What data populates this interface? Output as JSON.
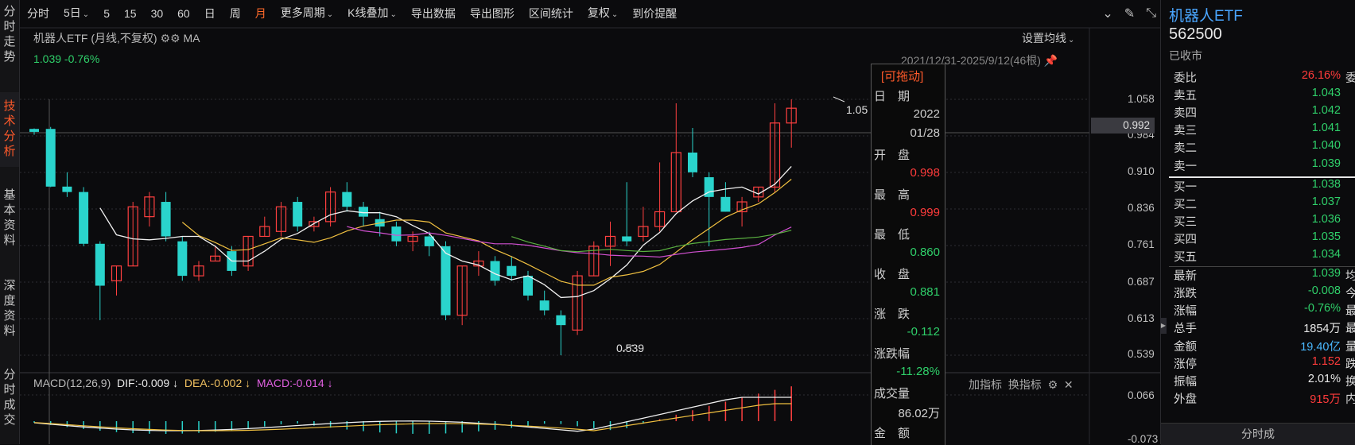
{
  "left_tabs": [
    {
      "label": "分时走势",
      "active": false
    },
    {
      "label": "技术分析",
      "active": true
    },
    {
      "label": "基本资料",
      "active": false
    },
    {
      "label": "深度资料",
      "active": false
    },
    {
      "label": "分时成交",
      "active": false
    }
  ],
  "toolbar": {
    "items": [
      {
        "label": "分时",
        "caret": false,
        "active": false
      },
      {
        "label": "5日",
        "caret": true,
        "active": false
      },
      {
        "label": "5",
        "caret": false,
        "active": false
      },
      {
        "label": "15",
        "caret": false,
        "active": false
      },
      {
        "label": "30",
        "caret": false,
        "active": false
      },
      {
        "label": "60",
        "caret": false,
        "active": false
      },
      {
        "label": "日",
        "caret": false,
        "active": false
      },
      {
        "label": "周",
        "caret": false,
        "active": false
      },
      {
        "label": "月",
        "caret": false,
        "active": true
      },
      {
        "label": "更多周期",
        "caret": true,
        "active": false
      },
      {
        "label": "K线叠加",
        "caret": true,
        "active": false
      },
      {
        "label": "导出数据",
        "caret": false,
        "active": false
      },
      {
        "label": "导出图形",
        "caret": false,
        "active": false
      },
      {
        "label": "区间统计",
        "caret": false,
        "active": false
      },
      {
        "label": "复权",
        "caret": true,
        "active": false
      },
      {
        "label": "到价提醒",
        "caret": false,
        "active": false
      }
    ]
  },
  "chart": {
    "title": "机器人ETF (月线,不复权)",
    "ma_label": "MA",
    "price_line": "1.039 -0.76%",
    "range_label": "2021/12/31-2025/9/12(46根)",
    "ma_setting": "设置均线",
    "axis_labels": [
      "1.058",
      "0.984",
      "0.910",
      "0.836",
      "0.761",
      "0.687",
      "0.613",
      "0.539"
    ],
    "crosshair_value": "0.992",
    "high_mark": "1.05",
    "low_mark": "0.539",
    "macd_axis": [
      "0.066",
      "-0.073"
    ]
  },
  "popup": {
    "drag": "[可拖动]",
    "date_label": "日　期",
    "year": "2022",
    "date": "01/28",
    "open_label": "开　盘",
    "open": "0.998",
    "high_label": "最　高",
    "high": "0.999",
    "low_label": "最　低",
    "low": "0.860",
    "close_label": "收　盘",
    "close": "0.881",
    "chg_label": "涨　跌",
    "chg": "-0.112",
    "pct_label": "涨跌幅",
    "pct": "-11.28%",
    "vol_label": "成交量",
    "vol": "86.02万",
    "amt_label": "金　额"
  },
  "macd": {
    "name": "MACD(12,26,9)",
    "dif": "DIF:-0.009",
    "dea": "DEA:-0.002",
    "mac": "MACD:-0.014",
    "arrow": "↓",
    "add_indicator": "加指标",
    "switch_indicator": "换指标"
  },
  "quote": {
    "name": "机器人ETF",
    "code": "562500",
    "status": "已收市",
    "ratio_label": "委比",
    "ratio": "26.16%",
    "ratio_extra": "委",
    "asks": [
      {
        "label": "卖五",
        "value": "1.043"
      },
      {
        "label": "卖四",
        "value": "1.042"
      },
      {
        "label": "卖三",
        "value": "1.041"
      },
      {
        "label": "卖二",
        "value": "1.040"
      },
      {
        "label": "卖一",
        "value": "1.039"
      }
    ],
    "bids": [
      {
        "label": "买一",
        "value": "1.038"
      },
      {
        "label": "买二",
        "value": "1.037"
      },
      {
        "label": "买三",
        "value": "1.036"
      },
      {
        "label": "买四",
        "value": "1.035"
      },
      {
        "label": "买五",
        "value": "1.034"
      }
    ],
    "stats": [
      {
        "label": "最新",
        "value": "1.039",
        "color": "#2fd06a",
        "extra": "均"
      },
      {
        "label": "涨跌",
        "value": "-0.008",
        "color": "#2fd06a",
        "extra": "今"
      },
      {
        "label": "涨幅",
        "value": "-0.76%",
        "color": "#2fd06a",
        "extra": "最"
      },
      {
        "label": "总手",
        "value": "1854万",
        "color": "#e8e8e8",
        "extra": "最"
      },
      {
        "label": "金额",
        "value": "19.40亿",
        "color": "#4ab8ff",
        "extra": "量"
      },
      {
        "label": "涨停",
        "value": "1.152",
        "color": "#ff3b3b",
        "extra": "跌"
      },
      {
        "label": "振幅",
        "value": "2.01%",
        "color": "#e8e8e8",
        "extra": "换"
      },
      {
        "label": "外盘",
        "value": "915万",
        "color": "#ff3b3b",
        "extra": "内"
      }
    ],
    "footer": "分时成"
  }
}
